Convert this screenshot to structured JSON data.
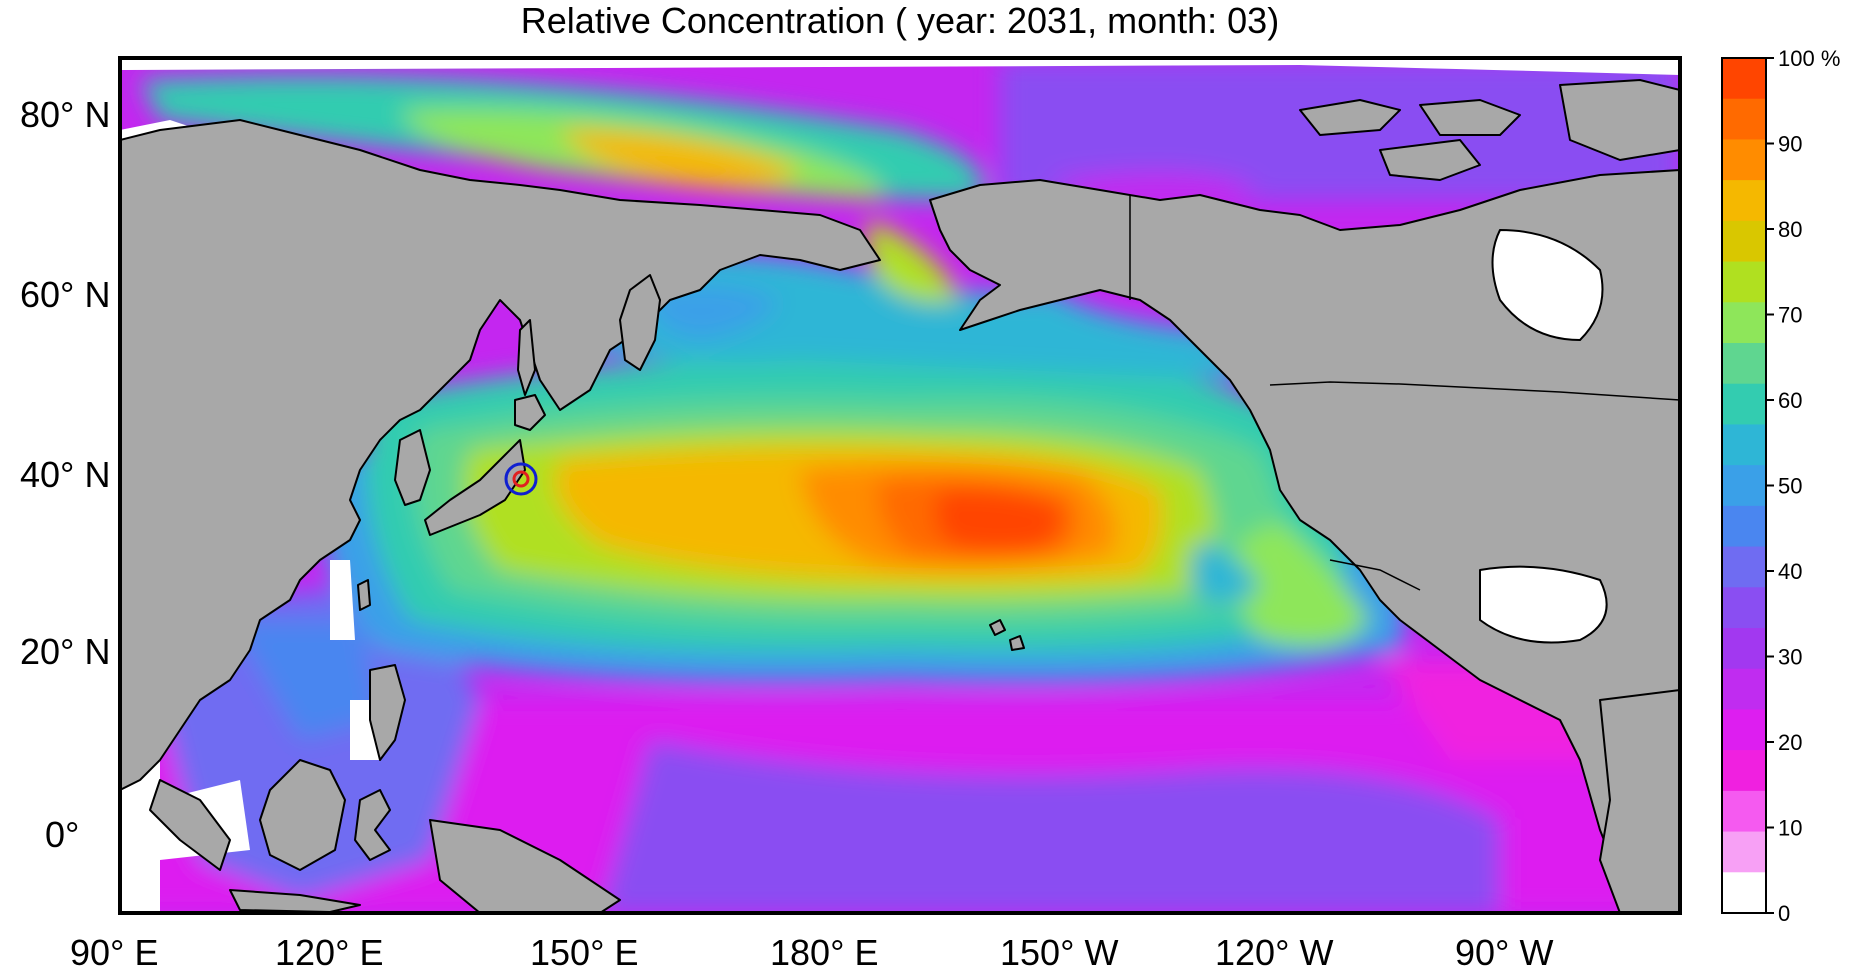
{
  "title": "Relative Concentration ( year: 2031, month: 03)",
  "lat_labels": [
    "80° N",
    "60° N",
    "40° N",
    "20° N",
    "0°"
  ],
  "lon_labels": [
    "90° E",
    "120° E",
    "150° E",
    "180° E",
    "150° W",
    "120° W",
    "90° W"
  ],
  "colorbar": {
    "labels": [
      "100 %",
      "90",
      "80",
      "70",
      "60",
      "50",
      "40",
      "30",
      "20",
      "10",
      "0"
    ],
    "colors": [
      "#ff4500",
      "#ff6a00",
      "#ff8c00",
      "#f5b800",
      "#d9c700",
      "#b0e020",
      "#8ee65a",
      "#5fd690",
      "#33ccb0",
      "#2eb6d6",
      "#3aa0e8",
      "#4a86f0",
      "#6f6cf2",
      "#8a4ef2",
      "#a238f0",
      "#c02cf0",
      "#dd1ef0",
      "#f020e0",
      "#f55af0",
      "#f7a0f5",
      "#ffffff"
    ]
  },
  "colors": {
    "land": "#a8a8a8",
    "marker_outer": "#1020d0",
    "marker_inner": "#e02020"
  }
}
